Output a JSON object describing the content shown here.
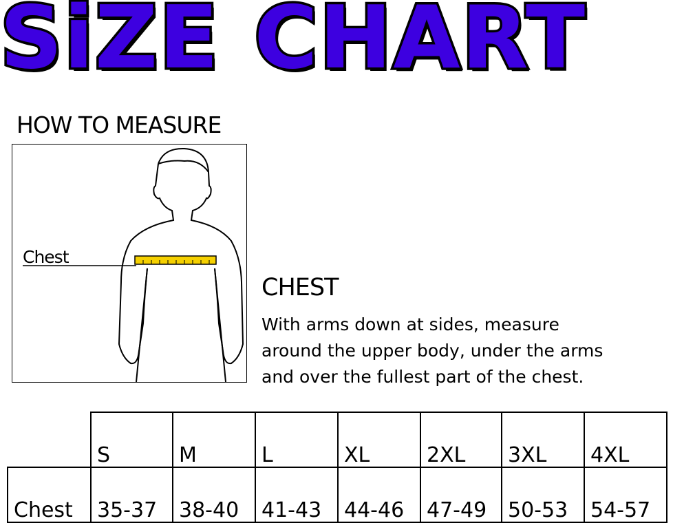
{
  "title": {
    "word1": "SiZE",
    "word2": "CHART",
    "fill_color": "#3d00e0",
    "outline_color": "#000000"
  },
  "how_to_measure": {
    "heading": "HOW TO MEASURE",
    "figure_label": "Chest",
    "tape_color": "#f5d000"
  },
  "instructions": {
    "heading": "CHEST",
    "lines": [
      "With arms down at sides, measure",
      "around the upper body, under the arms",
      "and over the fullest part of the chest."
    ]
  },
  "size_table": {
    "sizes": [
      "S",
      "M",
      "L",
      "XL",
      "2XL",
      "3XL",
      "4XL"
    ],
    "row_label": "Chest",
    "values": [
      "35-37",
      "38-40",
      "41-43",
      "44-46",
      "47-49",
      "50-53",
      "54-57"
    ]
  }
}
